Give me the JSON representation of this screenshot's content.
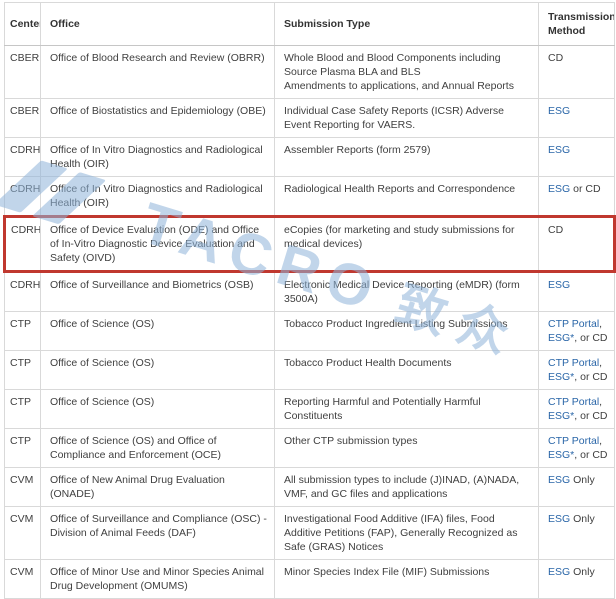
{
  "colors": {
    "link_blue": "#2a66a8",
    "highlight_red": "#c0382f",
    "border_gray": "#d9d9d9",
    "header_text": "#333333",
    "body_text": "#404040",
    "watermark_blue": "#8fb4d9"
  },
  "watermark": {
    "text": "TACRO",
    "text_cn": "致众"
  },
  "table": {
    "columns": [
      "Center",
      "Office",
      "Submission Type",
      "Transmission Method"
    ],
    "rows": [
      {
        "center": "CBER",
        "office": "Office of Blood Research and Review (OBRR)",
        "submission": [
          "Whole Blood and Blood Components including Source Plasma BLA and BLS",
          "Amendments to applications, and Annual Reports"
        ],
        "transmission": [
          {
            "text": "CD",
            "link": false
          }
        ],
        "highlighted": false
      },
      {
        "center": "CBER",
        "office": "Office of Biostatistics and Epidemiology (OBE)",
        "submission": [
          "Individual Case Safety Reports (ICSR) Adverse Event Reporting for VAERS."
        ],
        "transmission": [
          {
            "text": "ESG",
            "link": true
          }
        ],
        "highlighted": false
      },
      {
        "center": "CDRH",
        "office": "Office of In Vitro Diagnostics and Radiological Health (OIR)",
        "submission": [
          "Assembler Reports (form 2579)"
        ],
        "transmission": [
          {
            "text": "ESG",
            "link": true
          }
        ],
        "highlighted": false
      },
      {
        "center": "CDRH",
        "office": "Office of In Vitro Diagnostics and Radiological Health (OIR)",
        "submission": [
          "Radiological Health Reports and Correspondence"
        ],
        "transmission": [
          {
            "text": "ESG",
            "link": true
          },
          {
            "text": " or CD",
            "link": false
          }
        ],
        "highlighted": false
      },
      {
        "center": "CDRH",
        "office": "Office of Device Evaluation (ODE) and Office of In-Vitro Diagnostic Device Evaluation and Safety (OIVD)",
        "submission": [
          "eCopies (for marketing and study submissions for medical devices)"
        ],
        "transmission": [
          {
            "text": "CD",
            "link": false
          }
        ],
        "highlighted": true
      },
      {
        "center": "CDRH",
        "office": "Office of Surveillance and Biometrics (OSB)",
        "submission": [
          "Electronic Medical Device Reporting (eMDR) (form 3500A)"
        ],
        "transmission": [
          {
            "text": "ESG",
            "link": true
          }
        ],
        "highlighted": false
      },
      {
        "center": "CTP",
        "office": "Office of Science (OS)",
        "submission": [
          "Tobacco Product Ingredient Listing Submissions"
        ],
        "transmission": [
          {
            "text": "CTP Portal",
            "link": true
          },
          {
            "text": ", ",
            "link": false
          },
          {
            "text": "ESG*",
            "link": true
          },
          {
            "text": ", or CD",
            "link": false
          }
        ],
        "highlighted": false
      },
      {
        "center": "CTP",
        "office": "Office of Science (OS)",
        "submission": [
          "Tobacco Product Health Documents"
        ],
        "transmission": [
          {
            "text": "CTP Portal",
            "link": true
          },
          {
            "text": ", ",
            "link": false
          },
          {
            "text": "ESG*",
            "link": true
          },
          {
            "text": ", or CD",
            "link": false
          }
        ],
        "highlighted": false
      },
      {
        "center": "CTP",
        "office": "Office of Science (OS)",
        "submission": [
          "Reporting Harmful and Potentially Harmful Constituents"
        ],
        "transmission": [
          {
            "text": "CTP Portal",
            "link": true
          },
          {
            "text": ", ",
            "link": false
          },
          {
            "text": "ESG*",
            "link": true
          },
          {
            "text": ", or CD",
            "link": false
          }
        ],
        "highlighted": false
      },
      {
        "center": "CTP",
        "office": "Office of Science (OS) and Office of Compliance and Enforcement (OCE)",
        "submission": [
          "Other CTP submission types"
        ],
        "transmission": [
          {
            "text": "CTP Portal",
            "link": true
          },
          {
            "text": ", ",
            "link": false
          },
          {
            "text": "ESG*",
            "link": true
          },
          {
            "text": ", or CD",
            "link": false
          }
        ],
        "highlighted": false
      },
      {
        "center": "CVM",
        "office": "Office of New Animal Drug Evaluation (ONADE)",
        "submission": [
          "All submission types to include (J)INAD, (A)NADA, VMF, and GC files and applications"
        ],
        "transmission": [
          {
            "text": "ESG",
            "link": true
          },
          {
            "text": " Only",
            "link": false
          }
        ],
        "highlighted": false
      },
      {
        "center": "CVM",
        "office": "Office of Surveillance and Compliance (OSC) - Division of Animal Feeds (DAF)",
        "submission": [
          "Investigational Food Additive (IFA) files, Food Additive Petitions (FAP), Generally Recognized as Safe (GRAS) Notices"
        ],
        "transmission": [
          {
            "text": "ESG",
            "link": true
          },
          {
            "text": " Only",
            "link": false
          }
        ],
        "highlighted": false
      },
      {
        "center": "CVM",
        "office": "Office of Minor Use and Minor Species Animal Drug Development (OMUMS)",
        "submission": [
          "Minor Species Index File (MIF) Submissions"
        ],
        "transmission": [
          {
            "text": "ESG",
            "link": true
          },
          {
            "text": " Only",
            "link": false
          }
        ],
        "highlighted": false
      }
    ]
  }
}
